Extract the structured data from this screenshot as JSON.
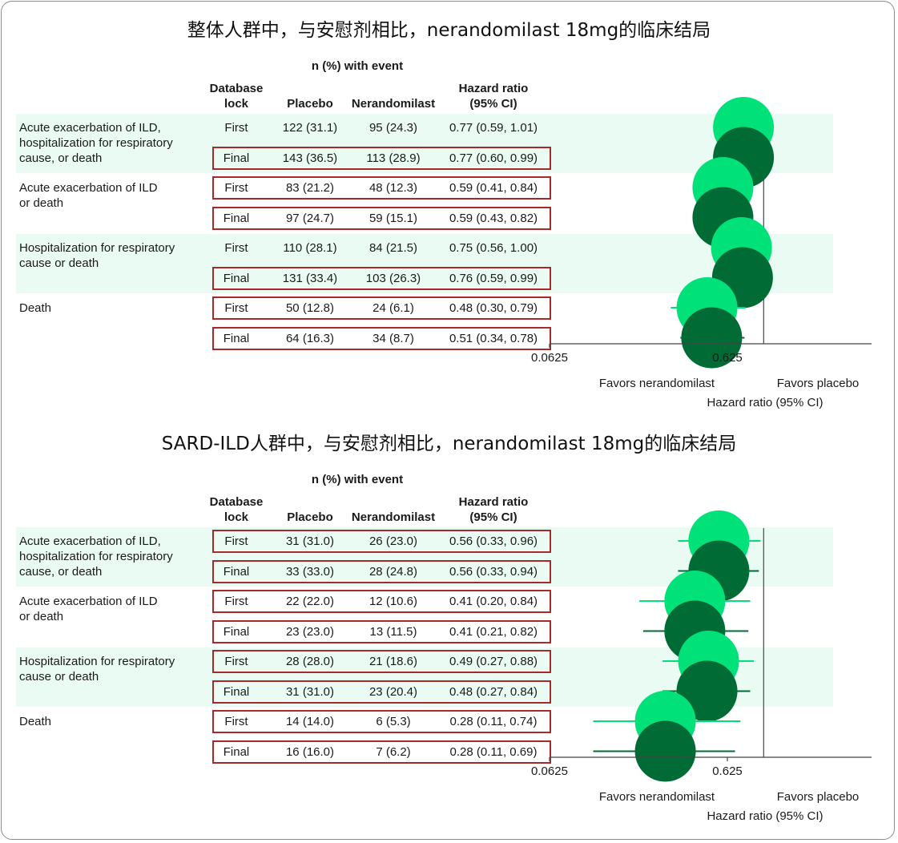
{
  "panels": [
    {
      "title": "整体人群中，与安慰剂相比，nerandomilast 18mg的临床结局",
      "headers": {
        "group": "n (%) with event",
        "lock": "Database\nlock",
        "placebo": "Placebo",
        "nerandomilast": "Nerandomilast",
        "hr": "Hazard ratio\n(95% CI)"
      },
      "outcomes": [
        {
          "label": "Acute exacerbation of ILD,\nhospitalization for respiratory\ncause, or death",
          "shaded": true,
          "rows": [
            {
              "lock": "First",
              "placebo": "122 (31.1)",
              "nerandomilast": "95 (24.3)",
              "hr_text": "0.77 (0.59, 1.01)",
              "boxed": false
            },
            {
              "lock": "Final",
              "placebo": "143 (36.5)",
              "nerandomilast": "113 (28.9)",
              "hr_text": "0.77 (0.60, 0.99)",
              "boxed": true
            }
          ]
        },
        {
          "label": "Acute exacerbation of ILD\nor death",
          "shaded": false,
          "rows": [
            {
              "lock": "First",
              "placebo": "83 (21.2)",
              "nerandomilast": "48 (12.3)",
              "hr_text": "0.59 (0.41, 0.84)",
              "boxed": true
            },
            {
              "lock": "Final",
              "placebo": "97 (24.7)",
              "nerandomilast": "59 (15.1)",
              "hr_text": "0.59 (0.43, 0.82)",
              "boxed": true
            }
          ]
        },
        {
          "label": "Hospitalization for respiratory\ncause or death",
          "shaded": true,
          "rows": [
            {
              "lock": "First",
              "placebo": "110 (28.1)",
              "nerandomilast": "84 (21.5)",
              "hr_text": "0.75 (0.56, 1.00)",
              "boxed": false
            },
            {
              "lock": "Final",
              "placebo": "131 (33.4)",
              "nerandomilast": "103 (26.3)",
              "hr_text": "0.76 (0.59, 0.99)",
              "boxed": true
            }
          ]
        },
        {
          "label": "Death",
          "shaded": false,
          "rows": [
            {
              "lock": "First",
              "placebo": "50 (12.8)",
              "nerandomilast": "24 (6.1)",
              "hr_text": "0.48 (0.30, 0.79)",
              "boxed": true
            },
            {
              "lock": "Final",
              "placebo": "64 (16.3)",
              "nerandomilast": "34 (8.7)",
              "hr_text": "0.51 (0.34, 0.78)",
              "boxed": true
            }
          ]
        }
      ],
      "axis": {
        "ticks": [
          "0.0625",
          "0.625"
        ],
        "favors_left": "Favors nerandomilast",
        "favors_right": "Favors placebo",
        "label": "Hazard ratio (95% CI)"
      }
    },
    {
      "title": "SARD-ILD人群中，与安慰剂相比，nerandomilast 18mg的临床结局",
      "headers": {
        "group": "n (%) with event",
        "lock": "Database\nlock",
        "placebo": "Placebo",
        "nerandomilast": "Nerandomilast",
        "hr": "Hazard ratio\n(95% CI)"
      },
      "outcomes": [
        {
          "label": "Acute exacerbation of ILD,\nhospitalization for respiratory\ncause, or death",
          "shaded": true,
          "rows": [
            {
              "lock": "First",
              "placebo": "31 (31.0)",
              "nerandomilast": "26 (23.0)",
              "hr_text": "0.56 (0.33, 0.96)",
              "boxed": true
            },
            {
              "lock": "Final",
              "placebo": "33 (33.0)",
              "nerandomilast": "28 (24.8)",
              "hr_text": "0.56 (0.33, 0.94)",
              "boxed": true
            }
          ]
        },
        {
          "label": "Acute exacerbation of ILD\nor death",
          "shaded": false,
          "rows": [
            {
              "lock": "First",
              "placebo": "22 (22.0)",
              "nerandomilast": "12 (10.6)",
              "hr_text": "0.41 (0.20, 0.84)",
              "boxed": true
            },
            {
              "lock": "Final",
              "placebo": "23 (23.0)",
              "nerandomilast": "13 (11.5)",
              "hr_text": "0.41 (0.21, 0.82)",
              "boxed": true
            }
          ]
        },
        {
          "label": "Hospitalization for respiratory\ncause or death",
          "shaded": true,
          "rows": [
            {
              "lock": "First",
              "placebo": "28 (28.0)",
              "nerandomilast": "21 (18.6)",
              "hr_text": "0.49 (0.27, 0.88)",
              "boxed": true
            },
            {
              "lock": "Final",
              "placebo": "31 (31.0)",
              "nerandomilast": "23 (20.4)",
              "hr_text": "0.48 (0.27, 0.84)",
              "boxed": true
            }
          ]
        },
        {
          "label": "Death",
          "shaded": false,
          "rows": [
            {
              "lock": "First",
              "placebo": "14 (14.0)",
              "nerandomilast": "6 (5.3)",
              "hr_text": "0.28 (0.11, 0.74)",
              "boxed": true
            },
            {
              "lock": "Final",
              "placebo": "16 (16.0)",
              "nerandomilast": "7 (6.2)",
              "hr_text": "0.28 (0.11, 0.69)",
              "boxed": true
            }
          ]
        }
      ],
      "axis": {
        "ticks": [
          "0.0625",
          "0.625"
        ],
        "favors_left": "Favors nerandomilast",
        "favors_right": "Favors placebo",
        "label": "Hazard ratio (95% CI)"
      }
    }
  ],
  "colors": {
    "first": "#00e17a",
    "final": "#006b35",
    "band": "#eafbf3",
    "box": "#a52a2a"
  },
  "chart_data": [
    {
      "type": "forest",
      "scale": "log",
      "null_line": 1,
      "series": [
        {
          "name": "First",
          "color": "#00e17a"
        },
        {
          "name": "Final",
          "color": "#006b35"
        }
      ],
      "categories": [
        "Acute exacerbation of ILD, hospitalization for respiratory cause, or death",
        "Acute exacerbation of ILD or death",
        "Hospitalization for respiratory cause or death",
        "Death"
      ],
      "points": [
        {
          "outcome": 0,
          "lock": "First",
          "hr": 0.77,
          "lo": 0.59,
          "hi": 1.01
        },
        {
          "outcome": 0,
          "lock": "Final",
          "hr": 0.77,
          "lo": 0.6,
          "hi": 0.99
        },
        {
          "outcome": 1,
          "lock": "First",
          "hr": 0.59,
          "lo": 0.41,
          "hi": 0.84
        },
        {
          "outcome": 1,
          "lock": "Final",
          "hr": 0.59,
          "lo": 0.43,
          "hi": 0.82
        },
        {
          "outcome": 2,
          "lock": "First",
          "hr": 0.75,
          "lo": 0.56,
          "hi": 1.0
        },
        {
          "outcome": 2,
          "lock": "Final",
          "hr": 0.76,
          "lo": 0.59,
          "hi": 0.99
        },
        {
          "outcome": 3,
          "lock": "First",
          "hr": 0.48,
          "lo": 0.3,
          "hi": 0.79
        },
        {
          "outcome": 3,
          "lock": "Final",
          "hr": 0.51,
          "lo": 0.34,
          "hi": 0.78
        }
      ]
    },
    {
      "type": "forest",
      "scale": "log",
      "null_line": 1,
      "series": [
        {
          "name": "First",
          "color": "#00e17a"
        },
        {
          "name": "Final",
          "color": "#006b35"
        }
      ],
      "categories": [
        "Acute exacerbation of ILD, hospitalization for respiratory cause, or death",
        "Acute exacerbation of ILD or death",
        "Hospitalization for respiratory cause or death",
        "Death"
      ],
      "points": [
        {
          "outcome": 0,
          "lock": "First",
          "hr": 0.56,
          "lo": 0.33,
          "hi": 0.96
        },
        {
          "outcome": 0,
          "lock": "Final",
          "hr": 0.56,
          "lo": 0.33,
          "hi": 0.94
        },
        {
          "outcome": 1,
          "lock": "First",
          "hr": 0.41,
          "lo": 0.2,
          "hi": 0.84
        },
        {
          "outcome": 1,
          "lock": "Final",
          "hr": 0.41,
          "lo": 0.21,
          "hi": 0.82
        },
        {
          "outcome": 2,
          "lock": "First",
          "hr": 0.49,
          "lo": 0.27,
          "hi": 0.88
        },
        {
          "outcome": 2,
          "lock": "Final",
          "hr": 0.48,
          "lo": 0.27,
          "hi": 0.84
        },
        {
          "outcome": 3,
          "lock": "First",
          "hr": 0.28,
          "lo": 0.11,
          "hi": 0.74
        },
        {
          "outcome": 3,
          "lock": "Final",
          "hr": 0.28,
          "lo": 0.11,
          "hi": 0.69
        }
      ]
    }
  ]
}
